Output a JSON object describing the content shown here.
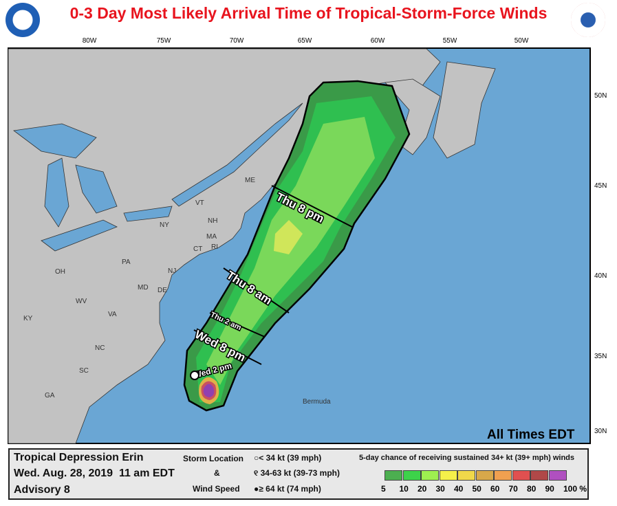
{
  "title": "0-3 Day Most Likely Arrival Time of Tropical-Storm-Force Winds",
  "logos": {
    "left": "NOAA",
    "right": "National Weather Service"
  },
  "lon_labels": [
    "80W",
    "75W",
    "70W",
    "65W",
    "60W",
    "55W",
    "50W"
  ],
  "lat_labels": [
    "50N",
    "45N",
    "40N",
    "35N",
    "30N"
  ],
  "states": [
    "ME",
    "VT",
    "NH",
    "NY",
    "MA",
    "CT",
    "RI",
    "PA",
    "NJ",
    "OH",
    "WV",
    "MD",
    "DE",
    "VA",
    "KY",
    "NC",
    "SC",
    "GA"
  ],
  "place": "Bermuda",
  "times": [
    "Thu 8 pm",
    "Thu 8 am",
    "Thu 2 am",
    "Wed 8 pm",
    "Wed 2 pm"
  ],
  "all_times": "All Times EDT",
  "legend": {
    "storm": "Tropical Depression Erin",
    "date": "Wed. Aug. 28, 2019  11 am EDT",
    "advisory": "Advisory 8",
    "storm_location": "Storm Location",
    "amp": "&",
    "wind_speed": "Wind Speed",
    "sym1": "< 34 kt (39 mph)",
    "sym2": "34-63 kt (39-73 mph)",
    "sym3": "≥ 64 kt (74 mph)",
    "scale_title": "5-day chance of receiving sustained 34+ kt (39+ mph) winds",
    "scale_labels": [
      "5",
      "10",
      "20",
      "30",
      "40",
      "50",
      "60",
      "70",
      "80",
      "90",
      "100 %"
    ],
    "scale_colors": [
      "#4caf50",
      "#3dd24a",
      "#9ef050",
      "#f5f04a",
      "#f0d84a",
      "#d8a84a",
      "#f0a050",
      "#e05050",
      "#b04848",
      "#b050c0"
    ]
  },
  "colors": {
    "ocean": "#6aa6d4",
    "land": "#c2c2c2",
    "title": "#e8141e"
  }
}
